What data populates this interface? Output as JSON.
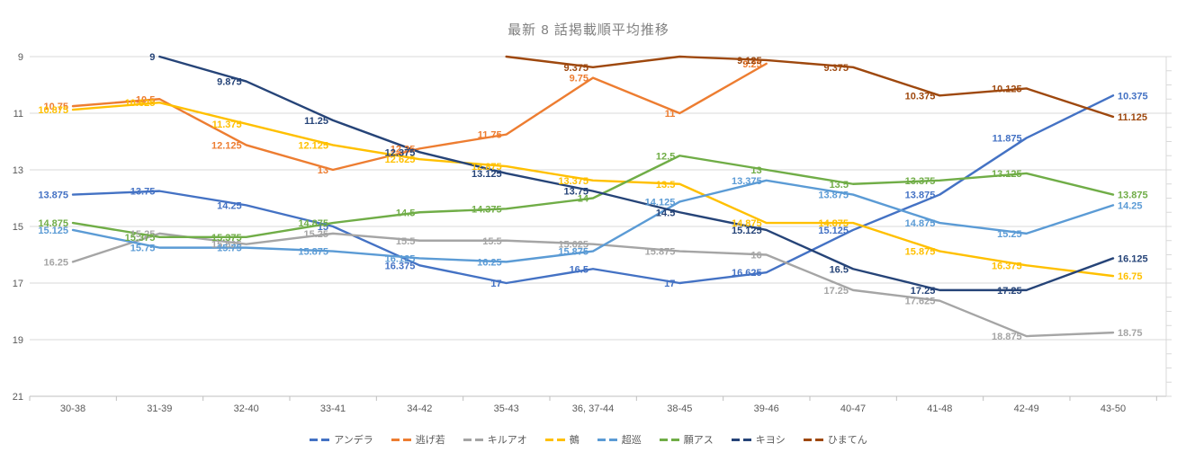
{
  "chart_data": {
    "type": "line",
    "title": "最新 8 話掲載順平均推移",
    "categories": [
      "30-38",
      "31-39",
      "32-40",
      "33-41",
      "34-42",
      "35-43",
      "36, 37-44",
      "38-45",
      "39-46",
      "40-47",
      "41-48",
      "42-49",
      "43-50"
    ],
    "y_axis": {
      "min": 9,
      "max": 21,
      "ticks": [
        9,
        11,
        13,
        15,
        17,
        19,
        21
      ],
      "inverted": true,
      "gridlines": true
    },
    "legend_position": "bottom",
    "data_labels": true,
    "series": [
      {
        "name": "アンデラ",
        "color": "#4472C4",
        "values": [
          13.875,
          13.75,
          14.25,
          15,
          16.375,
          17,
          16.5,
          17,
          16.625,
          15.125,
          13.875,
          11.875,
          10.375
        ]
      },
      {
        "name": "逃げ若",
        "color": "#ED7D31",
        "values": [
          10.75,
          10.5,
          12.125,
          13,
          12.25,
          11.75,
          9.75,
          11,
          9.25,
          null,
          null,
          null,
          null
        ]
      },
      {
        "name": "キルアオ",
        "color": "#A5A5A5",
        "values": [
          16.25,
          15.25,
          15.625,
          15.25,
          15.5,
          15.5,
          15.625,
          15.875,
          16,
          17.25,
          17.625,
          18.875,
          18.75
        ]
      },
      {
        "name": "鵺",
        "color": "#FFC000",
        "values": [
          10.875,
          10.625,
          11.375,
          12.125,
          12.625,
          12.875,
          13.375,
          13.5,
          14.875,
          14.875,
          15.875,
          16.375,
          16.75
        ]
      },
      {
        "name": "超巡",
        "color": "#5B9BD5",
        "values": [
          15.125,
          15.75,
          15.75,
          15.875,
          16.125,
          16.25,
          15.875,
          14.125,
          13.375,
          13.875,
          14.875,
          15.25,
          14.25
        ]
      },
      {
        "name": "願アス",
        "color": "#70AD47",
        "values": [
          14.875,
          15.375,
          15.375,
          14.875,
          14.5,
          14.375,
          14,
          12.5,
          13,
          13.5,
          13.375,
          13.125,
          13.875
        ]
      },
      {
        "name": "キヨシ",
        "color": "#264478",
        "values": [
          null,
          9,
          9.875,
          11.25,
          12.375,
          13.125,
          13.75,
          14.5,
          15.125,
          16.5,
          17.25,
          17.25,
          16.125
        ]
      },
      {
        "name": "ひまてん",
        "color": "#9E480E",
        "values": [
          null,
          null,
          null,
          null,
          null,
          8.875,
          9.375,
          8.75,
          9.125,
          9.375,
          10.375,
          10.125,
          11.125
        ]
      }
    ]
  }
}
